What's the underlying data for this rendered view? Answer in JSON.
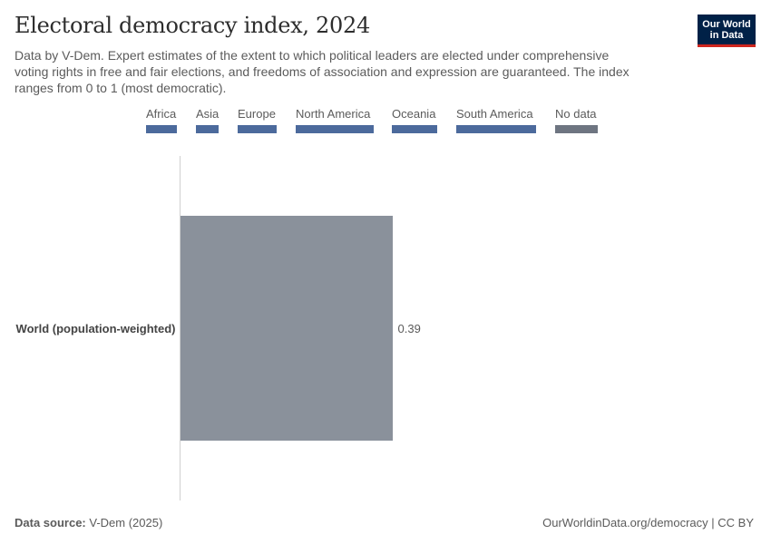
{
  "header": {
    "title": "Electoral democracy index, 2024",
    "subtitle_line1": "Data by V-Dem. Expert estimates of the extent to which political leaders are elected under comprehensive",
    "subtitle_line2": "voting rights in free and fair elections, and freedoms of association and expression are guaranteed. The index",
    "subtitle_line3": "ranges from 0 to 1 (most democratic).",
    "logo_line1": "Our World",
    "logo_line2": "in Data"
  },
  "legend": {
    "items": [
      {
        "label": "Africa",
        "color": "#4c6a9c"
      },
      {
        "label": "Asia",
        "color": "#4c6a9c"
      },
      {
        "label": "Europe",
        "color": "#4c6a9c"
      },
      {
        "label": "North America",
        "color": "#4c6a9c"
      },
      {
        "label": "Oceania",
        "color": "#4c6a9c"
      },
      {
        "label": "South America",
        "color": "#4c6a9c"
      },
      {
        "label": "No data",
        "color": "#6e7581"
      }
    ]
  },
  "chart_data": {
    "type": "bar",
    "orientation": "horizontal",
    "categories": [
      "World (population-weighted)"
    ],
    "values": [
      0.39
    ],
    "value_labels": [
      "0.39"
    ],
    "bar_color": "#8a919b",
    "xlim": [
      0,
      1
    ]
  },
  "footer": {
    "source_label": "Data source:",
    "source_value": "V-Dem (2025)",
    "credit": "OurWorldinData.org/democracy | CC BY"
  }
}
